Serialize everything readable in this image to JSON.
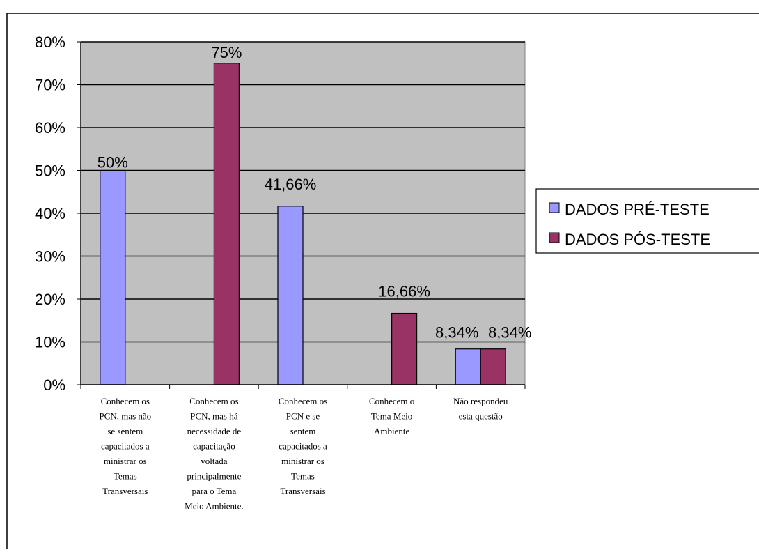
{
  "chart_data": {
    "type": "bar",
    "title": "",
    "xlabel": "",
    "ylabel": "",
    "ylim": [
      0,
      0.8
    ],
    "yticks": [
      {
        "value": 0,
        "label": "0%"
      },
      {
        "value": 0.1,
        "label": "10%"
      },
      {
        "value": 0.2,
        "label": "20%"
      },
      {
        "value": 0.3,
        "label": "30%"
      },
      {
        "value": 0.4,
        "label": "40%"
      },
      {
        "value": 0.5,
        "label": "50%"
      },
      {
        "value": 0.6,
        "label": "60%"
      },
      {
        "value": 0.7,
        "label": "70%"
      },
      {
        "value": 0.8,
        "label": "80%"
      }
    ],
    "grid": true,
    "legend_position": "right",
    "categories": [
      [
        "Conhecem os",
        "PCN, mas não",
        "se sentem",
        "capacitados a",
        "ministrar os",
        "Temas",
        "Transversais"
      ],
      [
        "Conhecem os",
        "PCN, mas há",
        "necessidade de",
        "capacitação",
        "voltada",
        "principalmente",
        "para o Tema",
        "Meio Ambiente."
      ],
      [
        "Conhecem os",
        "PCN e se",
        "sentem",
        "capacitados a",
        "ministrar os",
        "Temas",
        "Transversais"
      ],
      [
        "Conhecem o",
        "Tema Meio",
        "Ambiente"
      ],
      [
        "Não respondeu",
        "esta questão"
      ]
    ],
    "series": [
      {
        "name": "DADOS PRÉ-TESTE",
        "color": "#9999ff",
        "values": [
          0.5,
          null,
          0.4166,
          null,
          0.0834
        ],
        "labels": [
          "50%",
          null,
          "41,66%",
          null,
          "8,34%"
        ]
      },
      {
        "name": "DADOS PÓS-TESTE",
        "color": "#993366",
        "values": [
          null,
          0.75,
          null,
          0.1666,
          0.0834
        ],
        "labels": [
          null,
          "75%",
          null,
          "16,66%",
          "8,34%"
        ]
      }
    ],
    "plot_background": "#c0c0c0"
  }
}
